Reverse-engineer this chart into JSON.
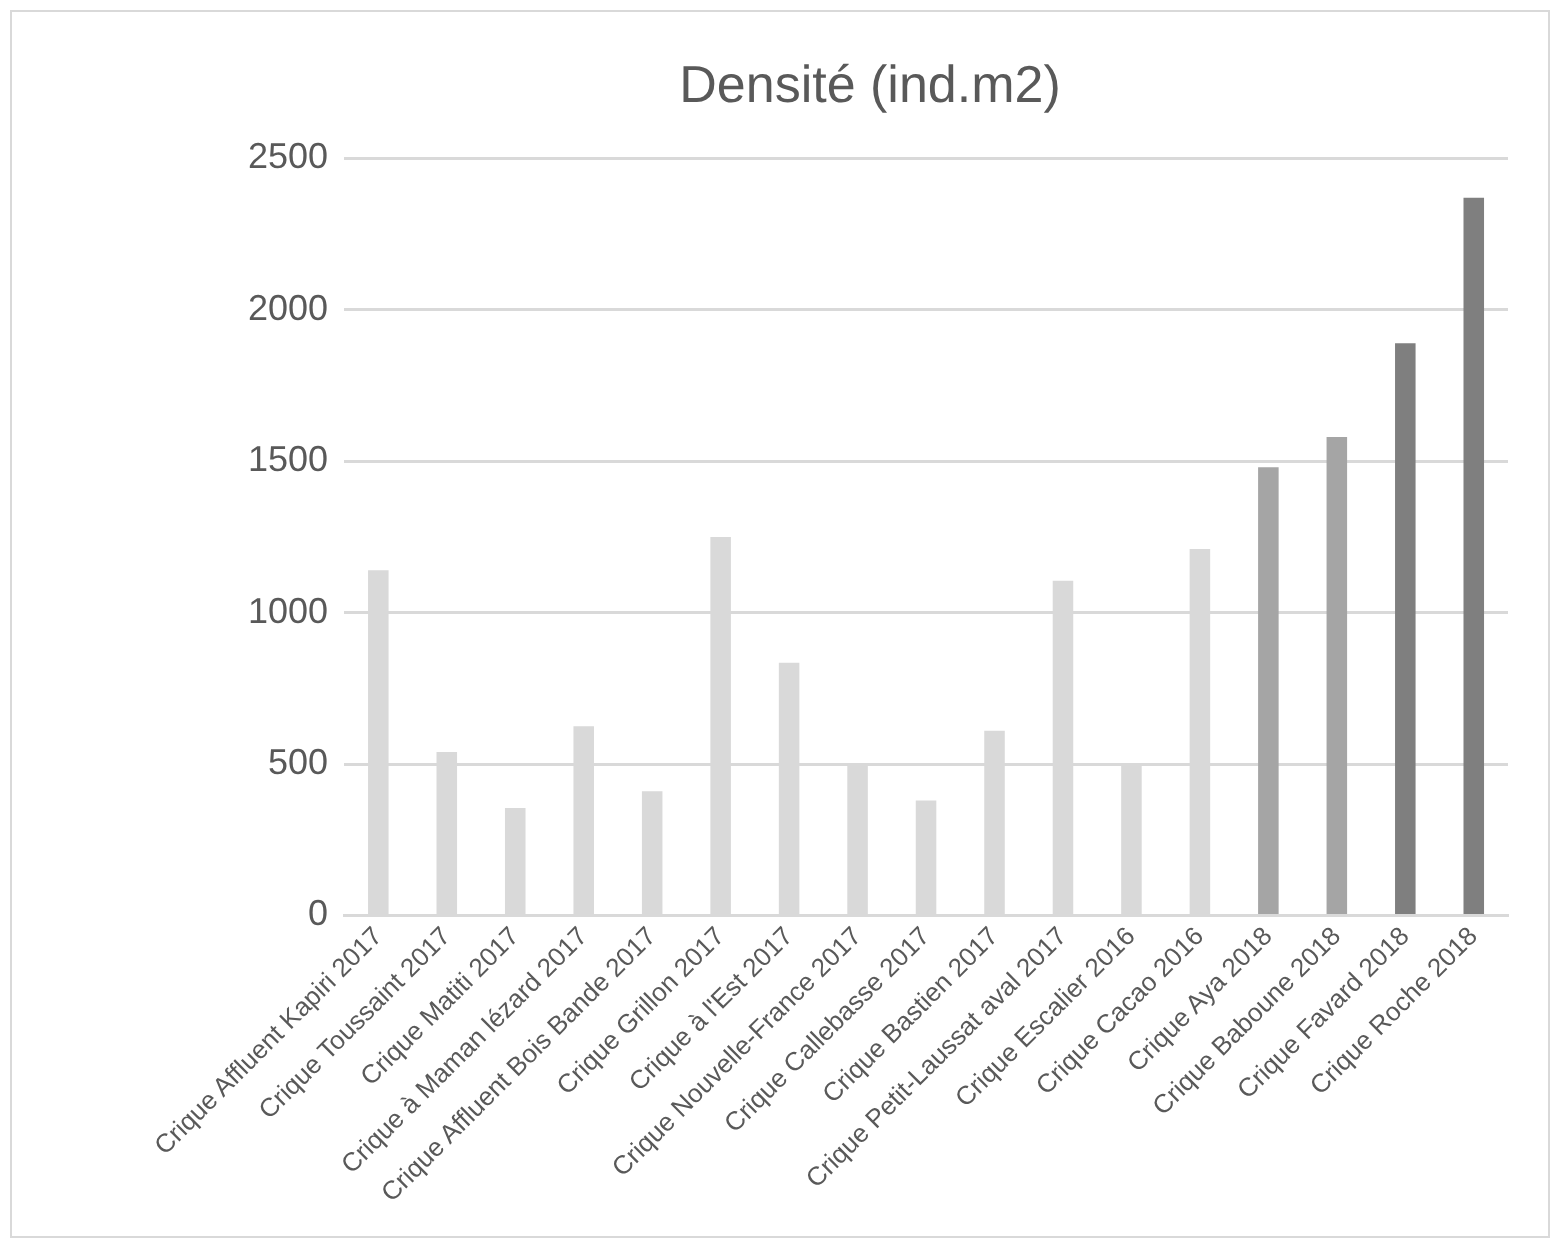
{
  "chart_data": {
    "type": "bar",
    "title": "Densité (ind.m2)",
    "categories": [
      "Crique Affluent Kapiri 2017",
      "Crique Toussaint 2017",
      "Crique Matiti 2017",
      "Crique à Maman lézard 2017",
      "Crique Affluent Bois Bande 2017",
      "Crique Grillon 2017",
      "Crique à l'Est 2017",
      "Crique Nouvelle-France 2017",
      "Crique Callebasse 2017",
      "Crique Bastien 2017",
      "Crique Petit-Laussat aval 2017",
      "Crique Escalier 2016",
      "Crique Cacao 2016",
      "Crique Aya 2018",
      "Crique Baboune 2018",
      "Crique Favard 2018",
      "Crique Roche 2018"
    ],
    "values": [
      1140,
      540,
      355,
      625,
      410,
      1250,
      835,
      500,
      380,
      610,
      1105,
      500,
      1210,
      1480,
      1580,
      1890,
      2370
    ],
    "colors": [
      "#d9d9d9",
      "#d9d9d9",
      "#d9d9d9",
      "#d9d9d9",
      "#d9d9d9",
      "#d9d9d9",
      "#d9d9d9",
      "#d9d9d9",
      "#d9d9d9",
      "#d9d9d9",
      "#d9d9d9",
      "#d9d9d9",
      "#d9d9d9",
      "#a5a5a5",
      "#a5a5a5",
      "#7f7f7f",
      "#7f7f7f"
    ],
    "ylim": [
      0,
      2500
    ],
    "yticks": [
      0,
      500,
      1000,
      1500,
      2000,
      2500
    ],
    "grid": "y"
  }
}
